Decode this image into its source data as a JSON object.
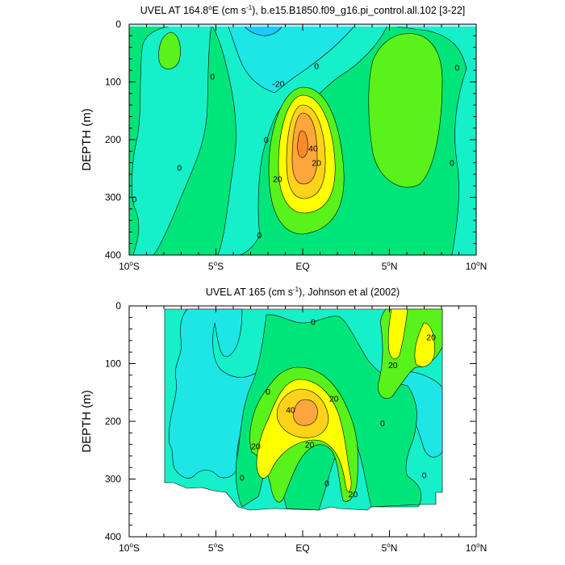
{
  "chart_data": [
    {
      "type": "contour",
      "title_pre": "UVEL AT 164.8",
      "title_deg": "o",
      "title_mid": "E (cm s",
      "title_exp": "-1",
      "title_post": "), b.e15.B1850.f09_g16.pi_control.all.102 [3-22]",
      "ylabel": "DEPTH (m)",
      "xlim": [
        -10,
        10
      ],
      "ylim": [
        400,
        0
      ],
      "x_ticks": [
        {
          "value": -10,
          "label": "10",
          "deg": "o",
          "suffix": "S"
        },
        {
          "value": -5,
          "label": "5",
          "deg": "o",
          "suffix": "S"
        },
        {
          "value": 0,
          "label": "EQ",
          "deg": "",
          "suffix": ""
        },
        {
          "value": 5,
          "label": "5",
          "deg": "o",
          "suffix": "N"
        },
        {
          "value": 10,
          "label": "10",
          "deg": "o",
          "suffix": "N"
        }
      ],
      "y_ticks": [
        {
          "value": 0,
          "label": "0"
        },
        {
          "value": 100,
          "label": "100"
        },
        {
          "value": 200,
          "label": "200"
        },
        {
          "value": 300,
          "label": "300"
        },
        {
          "value": 400,
          "label": "400"
        }
      ],
      "contour_levels": [
        -30,
        -20,
        -10,
        0,
        10,
        20,
        30,
        40,
        50
      ],
      "fill_colors": [
        "#1ec8ff",
        "#1fe6e6",
        "#15f0c8",
        "#00e57a",
        "#59f21a",
        "#ffff00",
        "#ffd21a",
        "#ffa63c"
      ],
      "contour_labels": [
        {
          "x": -5.2,
          "y": 90,
          "text": "0"
        },
        {
          "x": -7.1,
          "y": 248,
          "text": "0"
        },
        {
          "x": -9.7,
          "y": 303,
          "text": "0"
        },
        {
          "x": -2.5,
          "y": 365,
          "text": "0"
        },
        {
          "x": -2.1,
          "y": 200,
          "text": "0"
        },
        {
          "x": 0.8,
          "y": 72,
          "text": "0"
        },
        {
          "x": 8.6,
          "y": 240,
          "text": "0"
        },
        {
          "x": 8.9,
          "y": 75,
          "text": "0"
        },
        {
          "x": -1.4,
          "y": 103,
          "text": "-20"
        },
        {
          "x": 0.8,
          "y": 240,
          "text": "20"
        },
        {
          "x": -1.45,
          "y": 268,
          "text": "20"
        },
        {
          "x": 0.6,
          "y": 215,
          "text": "40"
        }
      ]
    },
    {
      "type": "contour",
      "title_pre": "UVEL AT 165 (cm s",
      "title_deg": "",
      "title_mid": "",
      "title_exp": "-1",
      "title_post": "), Johnson et al (2002)",
      "ylabel": "DEPTH (m)",
      "xlim": [
        -10,
        10
      ],
      "ylim": [
        400,
        0
      ],
      "x_ticks": [
        {
          "value": -10,
          "label": "10",
          "deg": "o",
          "suffix": "S"
        },
        {
          "value": -5,
          "label": "5",
          "deg": "o",
          "suffix": "S"
        },
        {
          "value": 0,
          "label": "EQ",
          "deg": "",
          "suffix": ""
        },
        {
          "value": 5,
          "label": "5",
          "deg": "o",
          "suffix": "N"
        },
        {
          "value": 10,
          "label": "10",
          "deg": "o",
          "suffix": "N"
        }
      ],
      "y_ticks": [
        {
          "value": 0,
          "label": "0"
        },
        {
          "value": 100,
          "label": "100"
        },
        {
          "value": 200,
          "label": "200"
        },
        {
          "value": 300,
          "label": "300"
        },
        {
          "value": 400,
          "label": "400"
        }
      ],
      "data_extent": {
        "x": [
          -8,
          8
        ],
        "depth": [
          5,
          350
        ]
      },
      "contour_levels": [
        -20,
        -10,
        0,
        10,
        20,
        30,
        40
      ],
      "fill_colors": [
        "#1fe6e6",
        "#15f0c8",
        "#00e57a",
        "#59f21a",
        "#ffff00",
        "#ffd21a"
      ],
      "contour_labels": [
        {
          "x": 0.6,
          "y": 27,
          "text": "0"
        },
        {
          "x": -2.0,
          "y": 148,
          "text": "0"
        },
        {
          "x": 4.6,
          "y": 203,
          "text": "0"
        },
        {
          "x": -3.5,
          "y": 297,
          "text": "0"
        },
        {
          "x": 1.4,
          "y": 307,
          "text": "0"
        },
        {
          "x": 7.0,
          "y": 293,
          "text": "0"
        },
        {
          "x": 1.8,
          "y": 160,
          "text": "20"
        },
        {
          "x": -2.7,
          "y": 243,
          "text": "20"
        },
        {
          "x": 0.4,
          "y": 240,
          "text": "20"
        },
        {
          "x": 2.9,
          "y": 326,
          "text": "20"
        },
        {
          "x": 5.2,
          "y": 102,
          "text": "20"
        },
        {
          "x": 7.4,
          "y": 54,
          "text": "20"
        },
        {
          "x": -0.7,
          "y": 180,
          "text": "40"
        }
      ]
    }
  ]
}
